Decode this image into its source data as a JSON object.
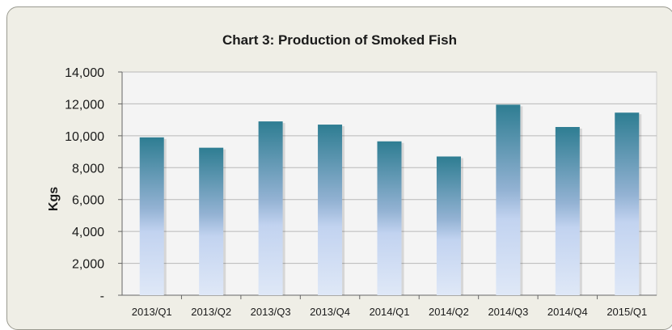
{
  "chart_data": {
    "type": "bar",
    "title": "Chart 3:  Production of Smoked Fish",
    "ylabel": "Kgs",
    "xlabel": "",
    "categories": [
      "2013/Q1",
      "2013/Q2",
      "2013/Q3",
      "2013/Q4",
      "2014/Q1",
      "2014/Q2",
      "2014/Q3",
      "2014/Q4",
      "2015/Q1"
    ],
    "values": [
      9900,
      9250,
      10900,
      10700,
      9650,
      8700,
      11950,
      10550,
      11450
    ],
    "ylim": [
      0,
      14000
    ],
    "yticks": [
      0,
      2000,
      4000,
      6000,
      8000,
      10000,
      12000,
      14000
    ],
    "ytick_labels": [
      "-",
      "2,000",
      "4,000",
      "6,000",
      "8,000",
      "10,000",
      "12,000",
      "14,000"
    ],
    "grid": true,
    "legend": "none",
    "colors": {
      "bar_top": "#2e7d92",
      "bar_mid": "#c2d3f0",
      "bar_bottom": "#d8e3f6",
      "plot_bg": "#f4f4f4",
      "frame_bg": "#efeee6",
      "grid": "#b8b8b8"
    }
  }
}
